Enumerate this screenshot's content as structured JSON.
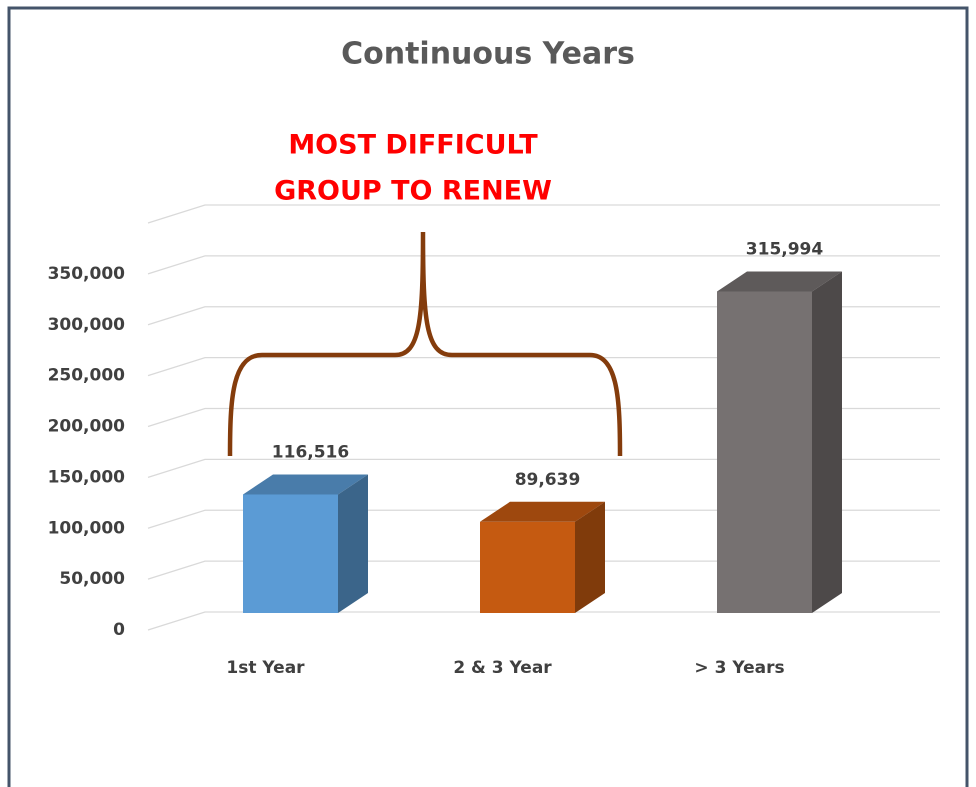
{
  "chart_data": {
    "type": "bar",
    "title": "Continuous Years",
    "annotation": [
      "MOST DIFFICULT",
      "GROUP TO RENEW"
    ],
    "categories": [
      "1st Year",
      "2 & 3 Year",
      "> 3 Years"
    ],
    "values": [
      116516,
      89639,
      315994
    ],
    "value_labels": [
      "116,516",
      "89,639",
      "315,994"
    ],
    "colors": [
      "#5b9bd5",
      "#c55a11",
      "#767171"
    ],
    "ylim": [
      0,
      400000
    ],
    "yticks": [
      0,
      {
        "value": 50000,
        "label": "50,000"
      },
      {
        "value": 100000,
        "label": "100,000"
      },
      {
        "value": 150000,
        "label": "150,000"
      },
      {
        "value": 200000,
        "label": "200,000"
      },
      {
        "value": 250000,
        "label": "250,000"
      },
      {
        "value": 300000,
        "label": "300,000"
      },
      {
        "value": 350000,
        "label": "350,000"
      }
    ],
    "grid": true
  }
}
